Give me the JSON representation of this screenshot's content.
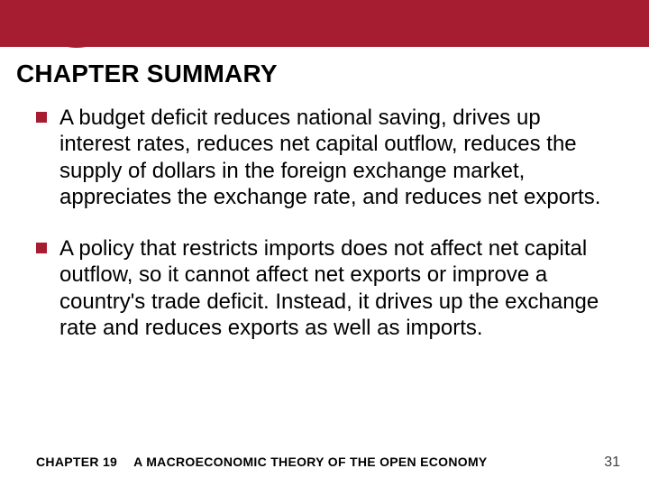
{
  "colors": {
    "brand": "#a61c30",
    "text": "#000000",
    "page_num": "#404040",
    "bg": "#ffffff"
  },
  "title": "CHAPTER SUMMARY",
  "title_fontsize": 28,
  "bullets": [
    "A budget deficit reduces national saving, drives up interest rates, reduces net capital outflow, reduces the supply of dollars in the foreign exchange market, appreciates the exchange rate, and reduces net exports.",
    "A policy that restricts imports does not affect net capital outflow, so it cannot affect net exports or improve a country's trade deficit.  Instead, it drives up the exchange rate and reduces exports as well as imports."
  ],
  "bullet_fontsize": 24,
  "footer": {
    "chapter": "CHAPTER 19",
    "title": "A MACROECONOMIC THEORY OF THE OPEN ECONOMY",
    "page": "31",
    "fontsize": 14
  }
}
